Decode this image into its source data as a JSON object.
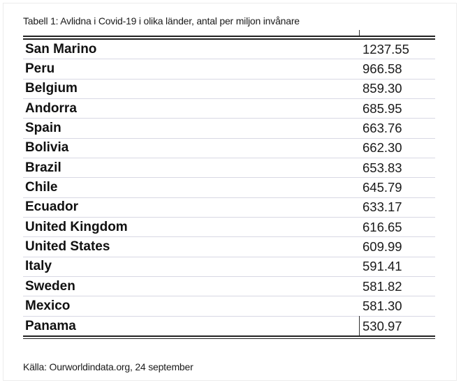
{
  "caption": "Tabell 1: Avlidna i Covid-19 i olika länder, antal per miljon invånare",
  "rows": [
    {
      "country": "San Marino",
      "value": "1237.55"
    },
    {
      "country": "Peru",
      "value": "966.58"
    },
    {
      "country": "Belgium",
      "value": "859.30"
    },
    {
      "country": "Andorra",
      "value": "685.95"
    },
    {
      "country": "Spain",
      "value": "663.76"
    },
    {
      "country": "Bolivia",
      "value": "662.30"
    },
    {
      "country": "Brazil",
      "value": "653.83"
    },
    {
      "country": "Chile",
      "value": "645.79"
    },
    {
      "country": "Ecuador",
      "value": "633.17"
    },
    {
      "country": "United Kingdom",
      "value": "616.65"
    },
    {
      "country": "United States",
      "value": "609.99"
    },
    {
      "country": "Italy",
      "value": "591.41"
    },
    {
      "country": "Sweden",
      "value": "581.82"
    },
    {
      "country": "Mexico",
      "value": "581.30"
    },
    {
      "country": "Panama",
      "value": "530.97"
    }
  ],
  "source": "Källa: Ourworldindata.org, 24 september"
}
